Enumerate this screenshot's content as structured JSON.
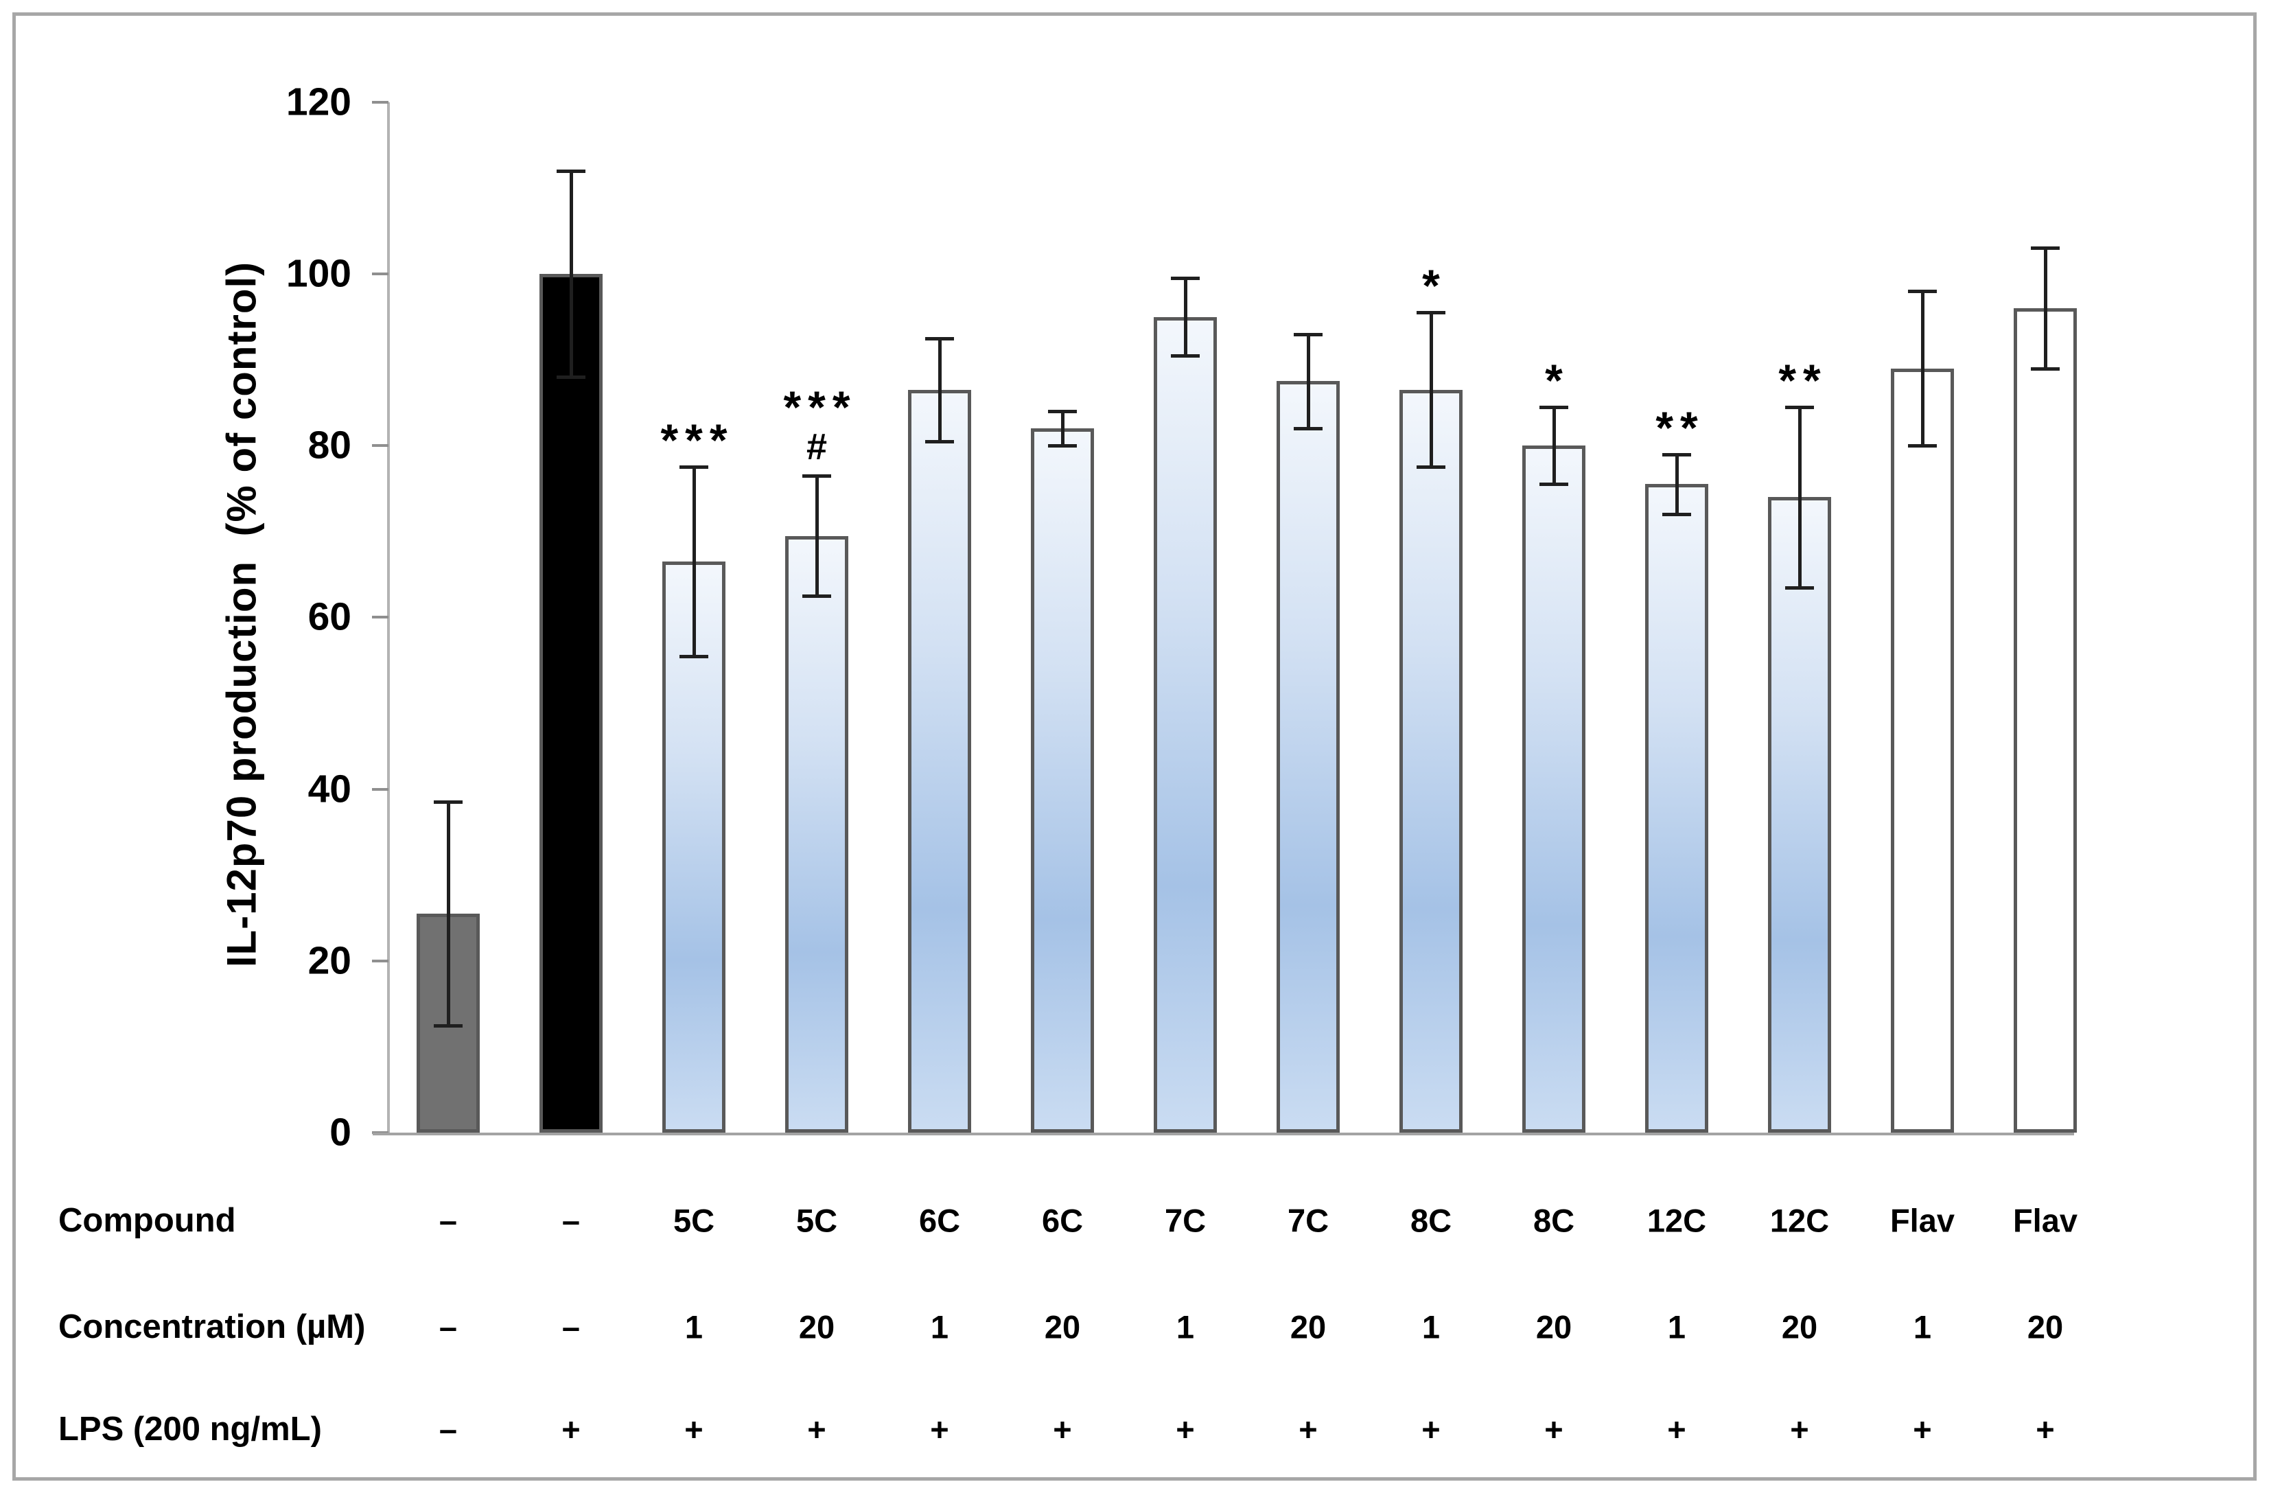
{
  "chart_data": {
    "type": "bar",
    "title": "",
    "ylabel": "IL-12p70 production  (% of control)",
    "ylim": [
      0,
      120
    ],
    "yticks": [
      0,
      20,
      40,
      60,
      80,
      100,
      120
    ],
    "grid": "off",
    "legend": "none",
    "rows": {
      "compound_label": "Compound",
      "concentration_label": "Concentration (µM)",
      "lps_label": "LPS (200 ng/mL)"
    },
    "bars": [
      {
        "compound": "–",
        "concentration": "–",
        "lps": "–",
        "value": 25.5,
        "error": 13,
        "style": "gray",
        "annotation": "",
        "annotation2": ""
      },
      {
        "compound": "–",
        "concentration": "–",
        "lps": "+",
        "value": 100,
        "error": 12,
        "style": "black",
        "annotation": "",
        "annotation2": ""
      },
      {
        "compound": "5C",
        "concentration": "1",
        "lps": "+",
        "value": 66.5,
        "error": 11,
        "style": "blue",
        "annotation": "***",
        "annotation2": ""
      },
      {
        "compound": "5C",
        "concentration": "20",
        "lps": "+",
        "value": 69.5,
        "error": 7,
        "style": "blue",
        "annotation": "***",
        "annotation2": "#"
      },
      {
        "compound": "6C",
        "concentration": "1",
        "lps": "+",
        "value": 86.5,
        "error": 6,
        "style": "blue",
        "annotation": "",
        "annotation2": ""
      },
      {
        "compound": "6C",
        "concentration": "20",
        "lps": "+",
        "value": 82,
        "error": 2,
        "style": "blue",
        "annotation": "",
        "annotation2": ""
      },
      {
        "compound": "7C",
        "concentration": "1",
        "lps": "+",
        "value": 95,
        "error": 4.5,
        "style": "blue",
        "annotation": "",
        "annotation2": ""
      },
      {
        "compound": "7C",
        "concentration": "20",
        "lps": "+",
        "value": 87.5,
        "error": 5.5,
        "style": "blue",
        "annotation": "",
        "annotation2": ""
      },
      {
        "compound": "8C",
        "concentration": "1",
        "lps": "+",
        "value": 86.5,
        "error": 9,
        "style": "blue",
        "annotation": "*",
        "annotation2": ""
      },
      {
        "compound": "8C",
        "concentration": "20",
        "lps": "+",
        "value": 80,
        "error": 4.5,
        "style": "blue",
        "annotation": "*",
        "annotation2": ""
      },
      {
        "compound": "12C",
        "concentration": "1",
        "lps": "+",
        "value": 75.5,
        "error": 3.5,
        "style": "blue",
        "annotation": "**",
        "annotation2": ""
      },
      {
        "compound": "12C",
        "concentration": "20",
        "lps": "+",
        "value": 74,
        "error": 10.5,
        "style": "blue",
        "annotation": "**",
        "annotation2": ""
      },
      {
        "compound": "Flav",
        "concentration": "1",
        "lps": "+",
        "value": 89,
        "error": 9,
        "style": "white",
        "annotation": "",
        "annotation2": ""
      },
      {
        "compound": "Flav",
        "concentration": "20",
        "lps": "+",
        "value": 96,
        "error": 7,
        "style": "white",
        "annotation": "",
        "annotation2": ""
      }
    ],
    "colors": {
      "bar_border": "#595959",
      "gray_fill": "#717171",
      "black_fill": "#000000",
      "blue_main": "#a5c2e6",
      "axis": "#b3b3b3",
      "baseline": "#a3a3a3",
      "error": "#1f1f1f",
      "frame": "#a7a7a7",
      "text": "#000000"
    }
  }
}
